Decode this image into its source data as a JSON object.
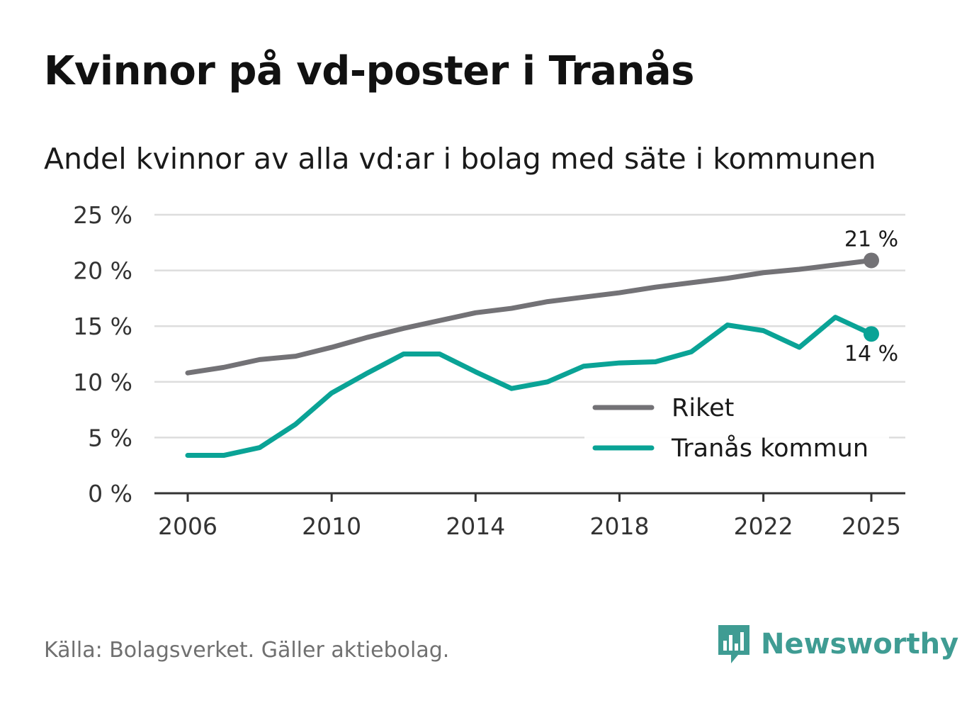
{
  "title": "Kvinnor på vd-poster i Tranås",
  "subtitle": "Andel kvinnor av alla vd:ar i bolag med säte i kommunen",
  "source": "Källa: Bolagsverket. Gäller aktiebolag.",
  "brand": "Newsworthy",
  "colors": {
    "riket": "#737276",
    "tranas": "#0aa396",
    "grid": "#dddddd",
    "axis": "#333333",
    "brand": "#3f9c93"
  },
  "chart_data": {
    "type": "line",
    "x": [
      2006,
      2007,
      2008,
      2009,
      2010,
      2011,
      2012,
      2013,
      2014,
      2015,
      2016,
      2017,
      2018,
      2019,
      2020,
      2021,
      2022,
      2023,
      2024,
      2025
    ],
    "series": [
      {
        "name": "Riket",
        "values": [
          10.8,
          11.3,
          12.0,
          12.3,
          13.1,
          14.0,
          14.8,
          15.5,
          16.2,
          16.6,
          17.2,
          17.6,
          18.0,
          18.5,
          18.9,
          19.3,
          19.8,
          20.1,
          20.5,
          20.9
        ],
        "end_label": "21 %"
      },
      {
        "name": "Tranås kommun",
        "values": [
          3.4,
          3.4,
          4.1,
          6.2,
          9.0,
          10.8,
          12.5,
          12.5,
          10.9,
          9.4,
          10.0,
          11.4,
          11.7,
          11.8,
          12.7,
          15.1,
          14.6,
          13.1,
          15.8,
          14.3
        ],
        "end_label": "14 %"
      }
    ],
    "ylim": [
      0,
      25
    ],
    "yticks": [
      0,
      5,
      10,
      15,
      20,
      25
    ],
    "ytick_labels": [
      "0 %",
      "5 %",
      "10 %",
      "15 %",
      "20 %",
      "25 %"
    ],
    "xticks": [
      2006,
      2010,
      2014,
      2018,
      2022,
      2025
    ],
    "xtick_labels": [
      "2006",
      "2010",
      "2014",
      "2018",
      "2022",
      "2025"
    ],
    "xlabel": "",
    "ylabel": "",
    "grid": true,
    "legend": "bottom-right"
  }
}
